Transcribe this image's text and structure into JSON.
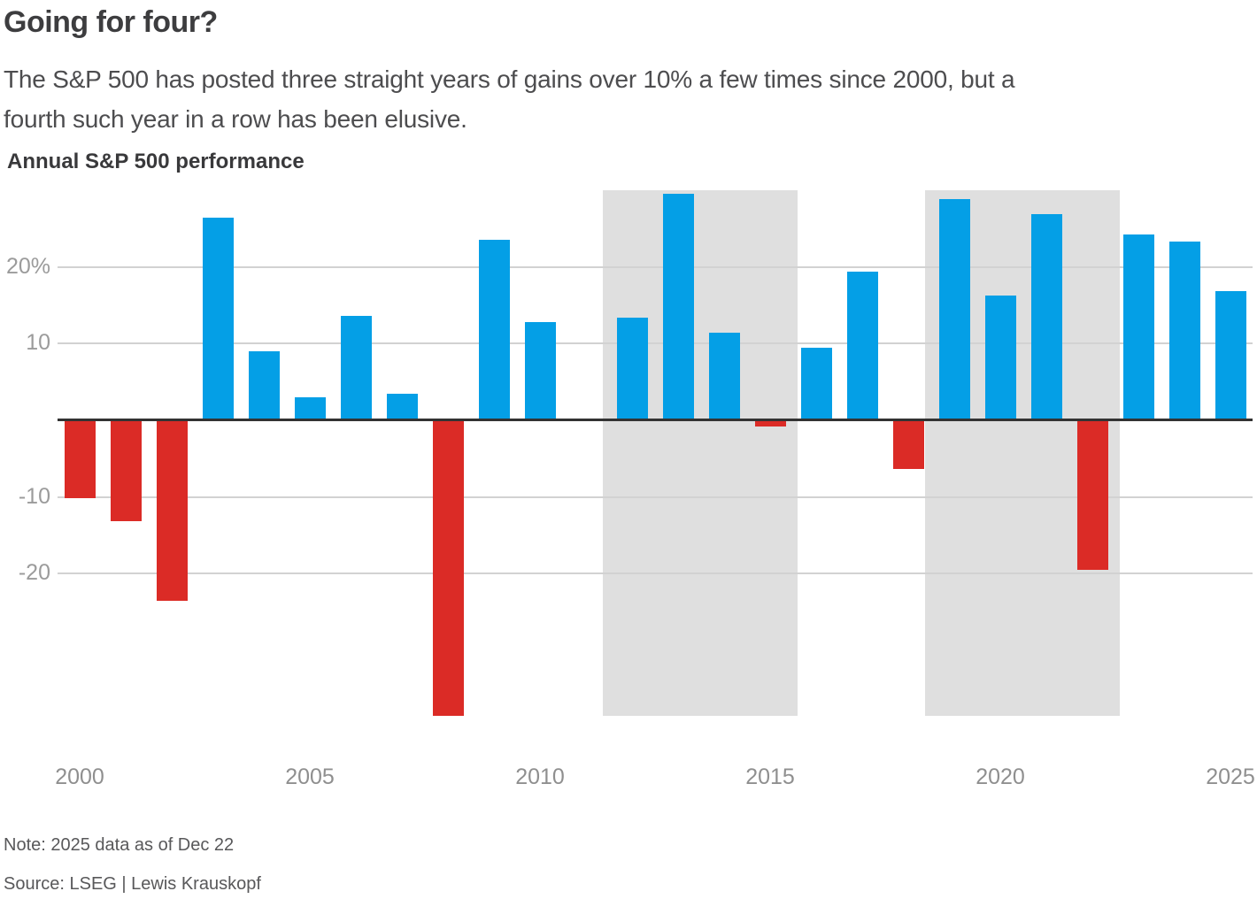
{
  "header": {
    "title": "Going for four?",
    "subtitle_lines": [
      "The S&P 500 has posted three straight years of gains over 10% a few times since 2000, but a",
      "fourth such year in a row has been elusive."
    ]
  },
  "chart_data": {
    "type": "bar",
    "heading": "Annual S&P 500 performance",
    "unit": "%",
    "x": [
      2000,
      2001,
      2002,
      2003,
      2004,
      2005,
      2006,
      2007,
      2008,
      2009,
      2010,
      2011,
      2012,
      2013,
      2014,
      2015,
      2016,
      2017,
      2018,
      2019,
      2020,
      2021,
      2022,
      2023,
      2024,
      2025
    ],
    "values": [
      -10.1,
      -13.0,
      -23.4,
      26.4,
      9.0,
      3.0,
      13.6,
      3.5,
      -38.5,
      23.5,
      12.8,
      0.0,
      13.4,
      29.6,
      11.4,
      -0.7,
      9.5,
      19.4,
      -6.2,
      28.9,
      16.3,
      26.9,
      -19.4,
      24.2,
      23.3,
      16.9
    ],
    "ylim": [
      -38.5,
      30
    ],
    "y_ticks": [
      {
        "label": "20%",
        "value": 20
      },
      {
        "label": "10",
        "value": 10
      },
      {
        "label": "-10",
        "value": -10
      },
      {
        "label": "-20",
        "value": -20
      }
    ],
    "x_ticks": [
      2000,
      2005,
      2010,
      2015,
      2020,
      2025
    ],
    "highlight_bands": [
      {
        "from": 2012,
        "to": 2015
      },
      {
        "from": 2019,
        "to": 2022
      }
    ],
    "colors": {
      "positive": "#049fe6",
      "negative": "#db2b26",
      "band": "#dfdfdf",
      "gridline": "#d2d2d2",
      "zero_line": "#333333"
    },
    "legend": null,
    "grid": true
  },
  "footer": {
    "note": "Note: 2025 data as of Dec 22",
    "source": "Source: LSEG | Lewis Krauskopf"
  }
}
